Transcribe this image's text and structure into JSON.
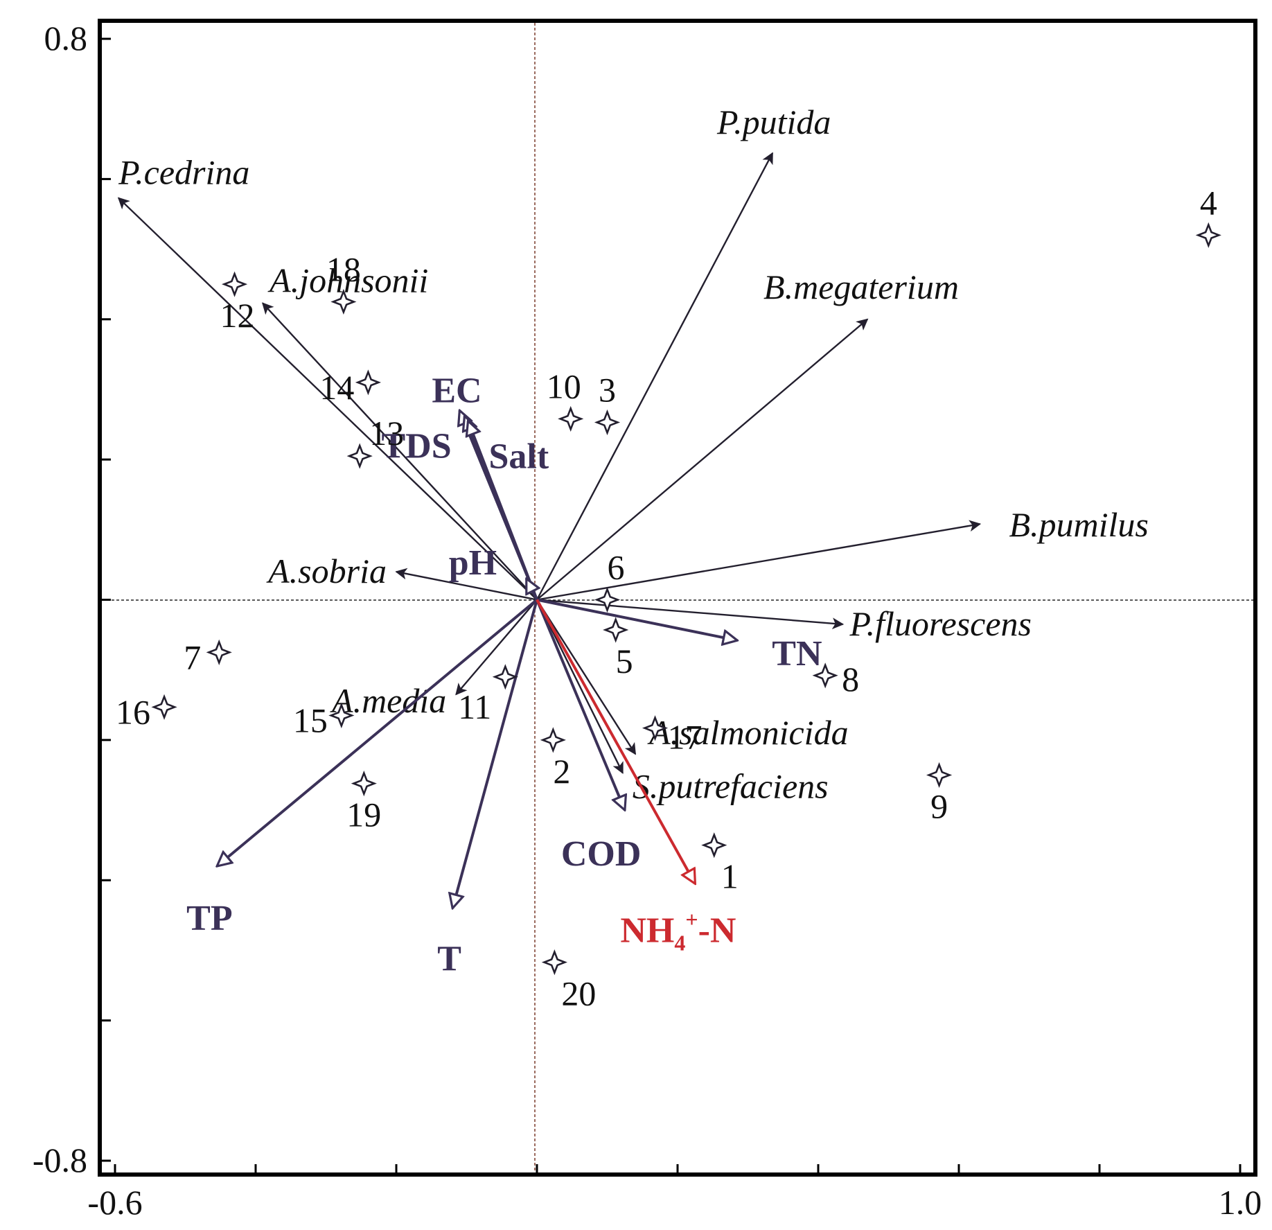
{
  "chart_data": {
    "type": "scatter",
    "subtype": "rda-biplot",
    "title": "",
    "xlabel": "",
    "ylabel": "",
    "xlim": [
      -0.6,
      1.0
    ],
    "ylim": [
      -0.8,
      0.8
    ],
    "x_tick_labels": [
      "-0.6",
      "1.0"
    ],
    "y_tick_labels": [
      "0.8",
      "-0.8"
    ],
    "x_ticks": [
      -0.6,
      -0.4,
      -0.2,
      0.0,
      0.2,
      0.4,
      0.6,
      0.8,
      1.0
    ],
    "y_ticks": [
      -0.8,
      -0.6,
      -0.4,
      -0.2,
      0.0,
      0.2,
      0.4,
      0.6,
      0.8
    ],
    "grid": false,
    "reference_lines": "dashed at x=0 and y=0",
    "colors": {
      "species_arrow": "#231f2e",
      "env_arrow": "#3b3158",
      "highlight_arrow": "#cc2a2f",
      "site_marker": "#231f2e",
      "axis": "#000000"
    },
    "species": [
      {
        "name": "P.cedrina",
        "x": -0.595,
        "y": 0.573
      },
      {
        "name": "A.johnsonii",
        "x": -0.39,
        "y": 0.423
      },
      {
        "name": "P.putida",
        "x": 0.335,
        "y": 0.637
      },
      {
        "name": "B.megaterium",
        "x": 0.47,
        "y": 0.4
      },
      {
        "name": "B.pumilus",
        "x": 0.63,
        "y": 0.108
      },
      {
        "name": "P.fluorescens",
        "x": 0.435,
        "y": -0.035
      },
      {
        "name": "A.sobria",
        "x": -0.2,
        "y": 0.04
      },
      {
        "name": "A.media",
        "x": -0.115,
        "y": -0.135
      },
      {
        "name": "A.salmonicida",
        "x": 0.14,
        "y": -0.22
      },
      {
        "name": "S.putrefaciens",
        "x": 0.122,
        "y": -0.247
      }
    ],
    "environment": [
      {
        "name": "EC",
        "x": -0.11,
        "y": 0.27
      },
      {
        "name": "TDS",
        "label": "TDS",
        "x": -0.103,
        "y": 0.262
      },
      {
        "name": "Salt",
        "x": -0.098,
        "y": 0.255
      },
      {
        "name": "pH",
        "x": -0.015,
        "y": 0.03
      },
      {
        "name": "TN",
        "x": 0.285,
        "y": -0.058
      },
      {
        "name": "COD",
        "x": 0.125,
        "y": -0.3
      },
      {
        "name": "TP",
        "x": -0.455,
        "y": -0.38
      },
      {
        "name": "T",
        "x": -0.12,
        "y": -0.44
      },
      {
        "name": "NH4+-N",
        "label_main": "NH",
        "label_sub": "4",
        "label_sup": "+",
        "label_tail": "-N",
        "x": 0.225,
        "y": -0.405,
        "highlight": true
      }
    ],
    "sites": [
      {
        "id": "1",
        "x": 0.252,
        "y": -0.35
      },
      {
        "id": "2",
        "x": 0.023,
        "y": -0.2
      },
      {
        "id": "3",
        "x": 0.1,
        "y": 0.253
      },
      {
        "id": "4",
        "x": 0.955,
        "y": 0.52
      },
      {
        "id": "5",
        "x": 0.112,
        "y": -0.043
      },
      {
        "id": "6",
        "x": 0.1,
        "y": 0.0
      },
      {
        "id": "7",
        "x": -0.452,
        "y": -0.075
      },
      {
        "id": "8",
        "x": 0.41,
        "y": -0.108
      },
      {
        "id": "9",
        "x": 0.572,
        "y": -0.25
      },
      {
        "id": "10",
        "x": 0.048,
        "y": 0.258
      },
      {
        "id": "11",
        "x": -0.045,
        "y": -0.11
      },
      {
        "id": "12",
        "x": -0.43,
        "y": 0.45
      },
      {
        "id": "13",
        "x": -0.252,
        "y": 0.205
      },
      {
        "id": "14",
        "x": -0.24,
        "y": 0.31
      },
      {
        "id": "15",
        "x": -0.278,
        "y": -0.165
      },
      {
        "id": "16",
        "x": -0.53,
        "y": -0.153
      },
      {
        "id": "17",
        "x": 0.168,
        "y": -0.183
      },
      {
        "id": "18",
        "x": -0.275,
        "y": 0.425
      },
      {
        "id": "19",
        "x": -0.246,
        "y": -0.262
      },
      {
        "id": "20",
        "x": 0.025,
        "y": -0.517
      }
    ]
  }
}
